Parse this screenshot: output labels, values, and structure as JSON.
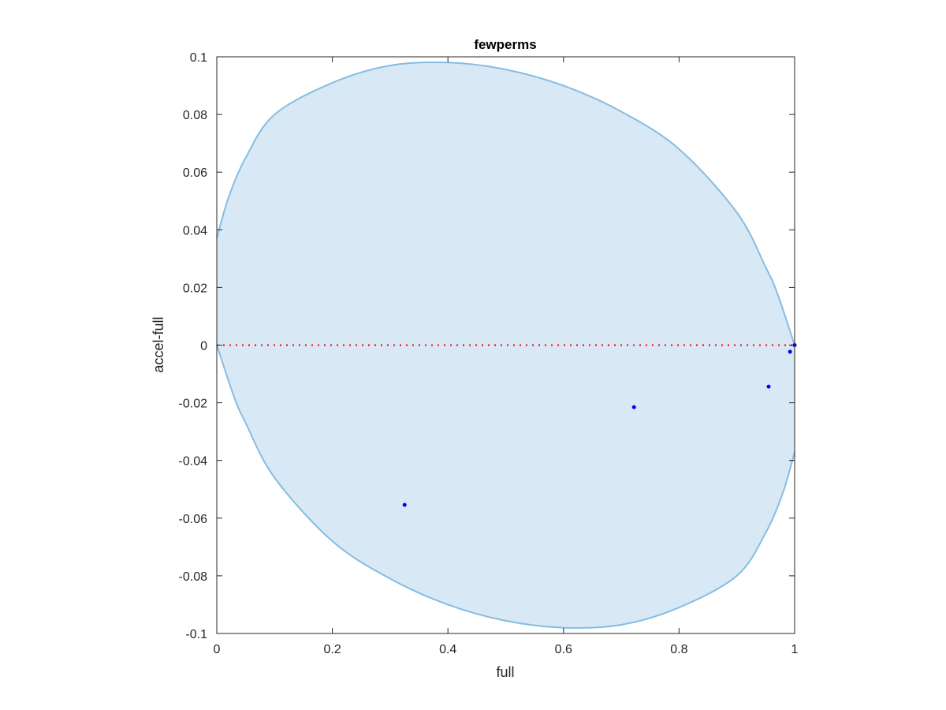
{
  "chart_data": {
    "type": "scatter",
    "title": "fewperms",
    "xlabel": "full",
    "ylabel": "accel-full",
    "xlim": [
      0,
      1
    ],
    "ylim": [
      -0.1,
      0.1
    ],
    "xticks": [
      "0",
      "0.2",
      "0.4",
      "0.6",
      "0.8",
      "1"
    ],
    "yticks": [
      "-0.1",
      "-0.08",
      "-0.06",
      "-0.04",
      "-0.02",
      "0",
      "0.02",
      "0.04",
      "0.06",
      "0.08",
      "0.1"
    ],
    "grid": false,
    "points": [
      {
        "x": 0.325,
        "y": -0.0554
      },
      {
        "x": 0.722,
        "y": -0.0215
      },
      {
        "x": 0.955,
        "y": -0.0144
      },
      {
        "x": 0.992,
        "y": -0.0023
      },
      {
        "x": 1.0,
        "y": 0.0
      }
    ],
    "region_upper": [
      [
        0,
        0.037
      ],
      [
        0.02,
        0.051
      ],
      [
        0.05,
        0.065
      ],
      [
        0.1,
        0.08
      ],
      [
        0.2,
        0.091
      ],
      [
        0.3,
        0.097
      ],
      [
        0.4,
        0.098
      ],
      [
        0.5,
        0.0956
      ],
      [
        0.6,
        0.09
      ],
      [
        0.7,
        0.081
      ],
      [
        0.8,
        0.068
      ],
      [
        0.9,
        0.046
      ],
      [
        0.95,
        0.027
      ],
      [
        0.97,
        0.018
      ],
      [
        1,
        0
      ]
    ],
    "region_lower": [
      [
        0,
        0
      ],
      [
        0.03,
        -0.018
      ],
      [
        0.05,
        -0.027
      ],
      [
        0.1,
        -0.046
      ],
      [
        0.2,
        -0.068
      ],
      [
        0.3,
        -0.081
      ],
      [
        0.4,
        -0.09
      ],
      [
        0.5,
        -0.0956
      ],
      [
        0.6,
        -0.098
      ],
      [
        0.7,
        -0.097
      ],
      [
        0.8,
        -0.091
      ],
      [
        0.9,
        -0.08
      ],
      [
        0.95,
        -0.065
      ],
      [
        0.98,
        -0.051
      ],
      [
        1,
        -0.037
      ]
    ],
    "reference_line": {
      "y": 0,
      "style": "dotted"
    },
    "colors": {
      "region_fill": "#d9e8f5",
      "region_edge": "#85bde3",
      "points": "#0000ff",
      "reference_line": "#ff0000"
    }
  }
}
